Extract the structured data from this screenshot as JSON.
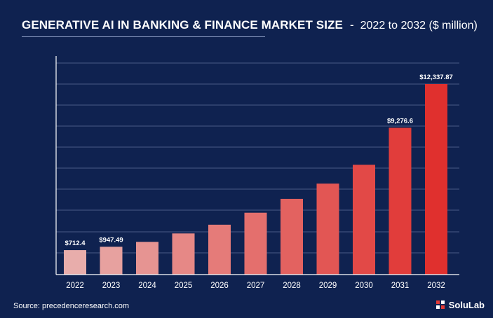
{
  "title": {
    "main": "GENERATIVE AI IN BANKING & FINANCE MARKET SIZE",
    "separator": "-",
    "sub": "2022 to 2032 ($ million)"
  },
  "source": "Source: precedenceresearch.com",
  "logo": {
    "text": "SoluLab",
    "icon": "solulab-logo-icon"
  },
  "colors": {
    "background": "#0f2250",
    "bar_start": "#e8adab",
    "bar_end": "#e0302e",
    "grid": "#4a5b86"
  },
  "chart_data": {
    "type": "bar",
    "categories": [
      "2022",
      "2023",
      "2024",
      "2025",
      "2026",
      "2027",
      "2028",
      "2029",
      "2030",
      "2031",
      "2032"
    ],
    "values": [
      712.4,
      947.49,
      1290,
      1880,
      2490,
      3330,
      4300,
      5370,
      6690,
      9276.6,
      12337.87
    ],
    "data_labels": [
      "$712.4",
      "$947.49",
      "",
      "",
      "",
      "",
      "",
      "",
      "",
      "$9,276.6",
      "$12,337.87"
    ],
    "ylim": [
      -1000,
      12337.87
    ],
    "grid": true,
    "legend": "none"
  }
}
